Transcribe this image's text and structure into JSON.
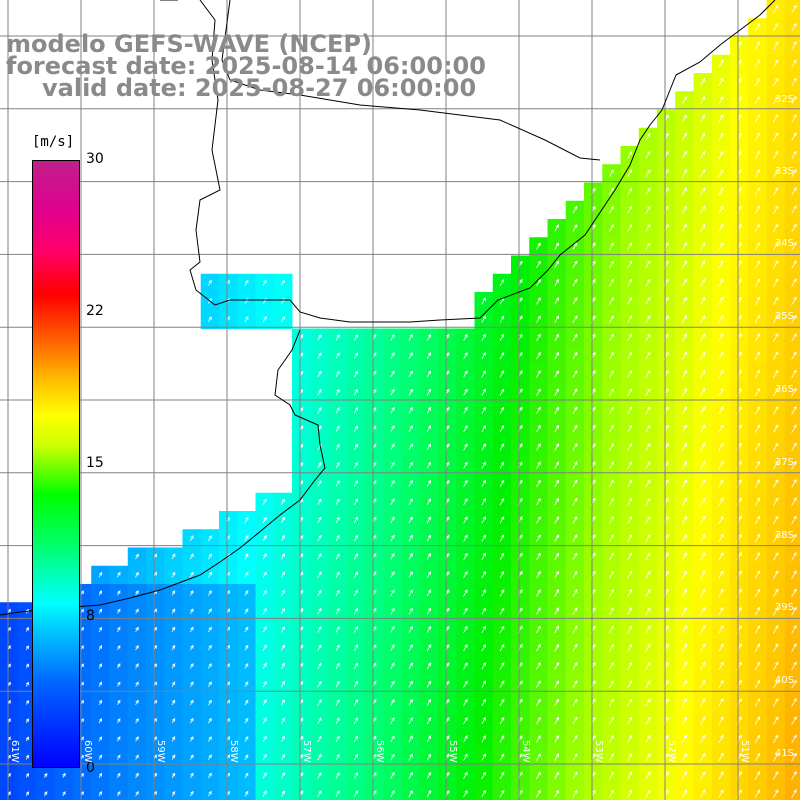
{
  "title": {
    "line1": "modelo GEFS-WAVE (NCEP)",
    "line2": "forecast date: 2025-08-14 06:00:00",
    "line3": "valid date: 2025-08-27 06:00:00"
  },
  "colorbar": {
    "unit": "[m/s]",
    "ticks": [
      {
        "label": "30",
        "value": 30
      },
      {
        "label": "22",
        "value": 22
      },
      {
        "label": "15",
        "value": 15
      },
      {
        "label": "8",
        "value": 8
      },
      {
        "label": "0",
        "value": 0
      }
    ],
    "min": 0,
    "max": 30
  },
  "map": {
    "lat_labels": [
      "32S",
      "33S",
      "34S",
      "35S",
      "36S",
      "37S",
      "38S",
      "39S",
      "40S",
      "41S"
    ],
    "lon_labels": [
      "61W",
      "60W",
      "59W",
      "58W",
      "57W",
      "56W",
      "55W",
      "54W",
      "53W",
      "52W",
      "51W"
    ],
    "variable": "wind speed",
    "colors": {
      "land": "#ffffff",
      "grid": "#808080",
      "coast": "#000000",
      "arrows": "#ffffff"
    }
  }
}
